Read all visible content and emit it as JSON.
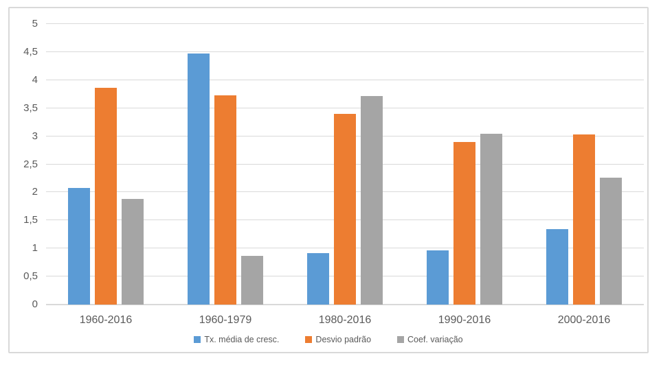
{
  "chart_data": {
    "type": "bar",
    "title": "",
    "categories": [
      "1960-2016",
      "1960-1979",
      "1980-2016",
      "1990-2016",
      "2000-2016"
    ],
    "series": [
      {
        "name": "Tx. média de cresc.",
        "color": "#5B9BD5",
        "values": [
          2.08,
          4.48,
          0.92,
          0.96,
          1.35
        ]
      },
      {
        "name": "Desvio padrão",
        "color": "#ED7D31",
        "values": [
          3.86,
          3.73,
          3.4,
          2.9,
          3.03
        ]
      },
      {
        "name": "Coef. variação",
        "color": "#A5A5A5",
        "values": [
          1.88,
          0.87,
          3.72,
          3.05,
          2.26
        ]
      }
    ],
    "xlabel": "",
    "ylabel": "",
    "ylim": [
      0,
      5
    ],
    "ytick_step": 0.5,
    "ytick_labels": [
      "0",
      "0,5",
      "1",
      "1,5",
      "2",
      "2,5",
      "3",
      "3,5",
      "4",
      "4,5",
      "5"
    ],
    "decimal_separator": ",",
    "grid": true,
    "legend_position": "bottom"
  },
  "colors": {
    "gridline": "#D9D9D9",
    "axis_line": "#D9D9D9",
    "frame_border": "#D9D9D9",
    "text": "#595959",
    "background": "#FFFFFF"
  }
}
